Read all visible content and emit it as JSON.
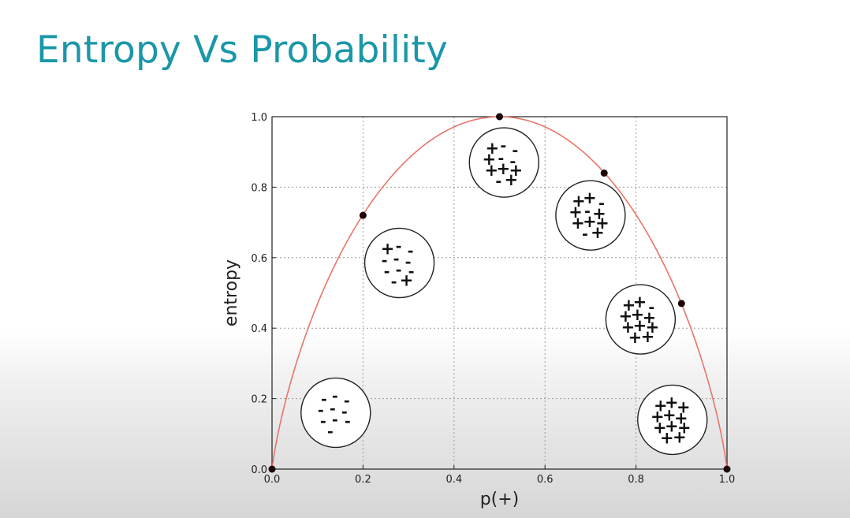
{
  "slide": {
    "title": "Entropy Vs Probability"
  },
  "chart_data": {
    "type": "line",
    "xlabel": "p(+)",
    "ylabel": "entropy",
    "xlim": [
      0.0,
      1.0
    ],
    "ylim": [
      0.0,
      1.0
    ],
    "xticks": [
      "0.0",
      "0.2",
      "0.4",
      "0.6",
      "0.8",
      "1.0"
    ],
    "yticks": [
      "0.0",
      "0.2",
      "0.4",
      "0.6",
      "0.8",
      "1.0"
    ],
    "grid": true,
    "line_color": "#e8756a",
    "series": [
      {
        "curve": "binary_entropy",
        "points": [
          {
            "x": 0.0,
            "y": 0.0
          },
          {
            "x": 0.2,
            "y": 0.72
          },
          {
            "x": 0.5,
            "y": 1.0
          },
          {
            "x": 0.73,
            "y": 0.84
          },
          {
            "x": 0.9,
            "y": 0.47
          },
          {
            "x": 1.0,
            "y": 0.0
          }
        ]
      }
    ],
    "samples": [
      {
        "x": 0.14,
        "y": 0.16,
        "symbols": "----------"
      },
      {
        "x": 0.28,
        "y": 0.585,
        "symbols": "+---------+"
      },
      {
        "x": 0.51,
        "y": 0.87,
        "symbols": "+--+--+++-+"
      },
      {
        "x": 0.7,
        "y": 0.72,
        "symbols": "++-+-++++-+"
      },
      {
        "x": 0.81,
        "y": 0.425,
        "symbols": "++-++++++++"
      },
      {
        "x": 0.88,
        "y": 0.14,
        "symbols": "+++++++++++"
      }
    ]
  }
}
